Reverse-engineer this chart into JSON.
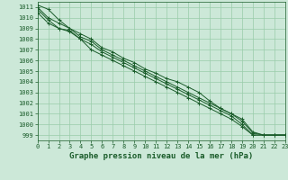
{
  "x": [
    0,
    1,
    2,
    3,
    4,
    5,
    6,
    7,
    8,
    9,
    10,
    11,
    12,
    13,
    14,
    15,
    16,
    17,
    18,
    19,
    20,
    21,
    22,
    23
  ],
  "line1": [
    1011.2,
    1010.8,
    1009.8,
    1009.0,
    1008.5,
    1008.0,
    1007.2,
    1006.8,
    1006.2,
    1005.8,
    1005.2,
    1004.8,
    1004.3,
    1004.0,
    1003.5,
    1003.0,
    1002.2,
    1001.5,
    1001.0,
    1000.5,
    999.3,
    999.0,
    999.0,
    999.0
  ],
  "line2": [
    1011.0,
    1010.0,
    1009.5,
    1009.0,
    1008.2,
    1007.8,
    1007.0,
    1006.5,
    1006.0,
    1005.5,
    1005.0,
    1004.5,
    1004.0,
    1003.5,
    1003.0,
    1002.5,
    1002.0,
    1001.5,
    1001.0,
    1000.3,
    999.2,
    999.0,
    999.0,
    999.0
  ],
  "line3": [
    1010.8,
    1009.8,
    1009.0,
    1008.8,
    1008.0,
    1007.5,
    1006.8,
    1006.3,
    1005.8,
    1005.3,
    1004.8,
    1004.3,
    1003.8,
    1003.3,
    1002.8,
    1002.3,
    1001.8,
    1001.3,
    1000.8,
    1000.0,
    999.0,
    999.0,
    999.0,
    999.0
  ],
  "line4": [
    1010.5,
    1009.5,
    1009.0,
    1008.7,
    1008.0,
    1007.0,
    1006.5,
    1006.0,
    1005.5,
    1005.0,
    1004.5,
    1004.0,
    1003.5,
    1003.0,
    1002.5,
    1002.0,
    1001.5,
    1001.0,
    1000.5,
    999.8,
    999.0,
    999.0,
    999.0,
    999.0
  ],
  "bg_color": "#cce8d8",
  "grid_color": "#99ccaa",
  "line_color": "#1a5c2a",
  "title": "Graphe pression niveau de la mer (hPa)",
  "ylim": [
    998.5,
    1011.5
  ],
  "xlim": [
    0,
    23
  ],
  "yticks": [
    999,
    1000,
    1001,
    1002,
    1003,
    1004,
    1005,
    1006,
    1007,
    1008,
    1009,
    1010,
    1011
  ],
  "xticks": [
    0,
    1,
    2,
    3,
    4,
    5,
    6,
    7,
    8,
    9,
    10,
    11,
    12,
    13,
    14,
    15,
    16,
    17,
    18,
    19,
    20,
    21,
    22,
    23
  ],
  "tick_fontsize": 5,
  "title_fontsize": 6.5
}
